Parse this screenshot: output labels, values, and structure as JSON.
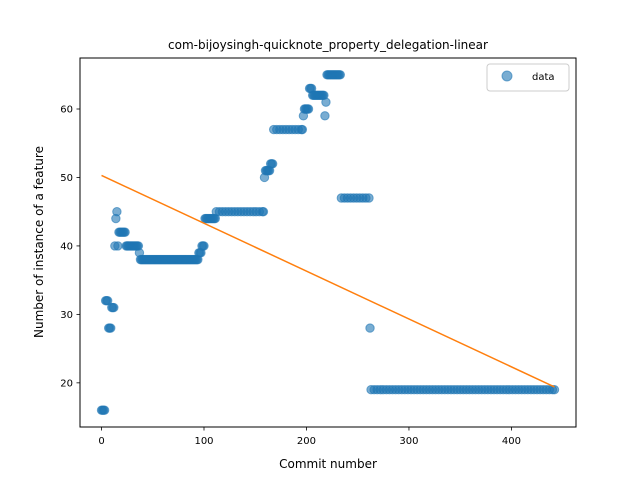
{
  "chart_data": {
    "type": "scatter",
    "title": "com-bijoysingh-quicknote_property_delegation-linear",
    "xlabel": "Commit number",
    "ylabel": "Number of instance of a feature",
    "xlim": [
      -21,
      463
    ],
    "ylim": [
      13.55,
      67.45
    ],
    "xticks": [
      0,
      100,
      200,
      300,
      400
    ],
    "yticks": [
      20,
      30,
      40,
      50,
      60
    ],
    "grid": false,
    "legend_position": "top-right",
    "colors": {
      "data": "#1f77b4",
      "fit": "#ff7f0e"
    },
    "series": [
      {
        "name": "data",
        "kind": "scatter",
        "points": [
          [
            0,
            16
          ],
          [
            1,
            16
          ],
          [
            2,
            16
          ],
          [
            3,
            16
          ],
          [
            4,
            32
          ],
          [
            5,
            32
          ],
          [
            6,
            32
          ],
          [
            7,
            28
          ],
          [
            8,
            28
          ],
          [
            9,
            28
          ],
          [
            10,
            31
          ],
          [
            11,
            31
          ],
          [
            12,
            31
          ],
          [
            13,
            40
          ],
          [
            14,
            44
          ],
          [
            15,
            45
          ],
          [
            16,
            40
          ],
          [
            17,
            42
          ],
          [
            18,
            42
          ],
          [
            19,
            42
          ],
          [
            20,
            42
          ],
          [
            21,
            42
          ],
          [
            22,
            42
          ],
          [
            23,
            42
          ],
          [
            24,
            40
          ],
          [
            25,
            40
          ],
          [
            26,
            40
          ],
          [
            27,
            40
          ],
          [
            28,
            40
          ],
          [
            29,
            40
          ],
          [
            30,
            40
          ],
          [
            31,
            40
          ],
          [
            32,
            40
          ],
          [
            33,
            40
          ],
          [
            34,
            40
          ],
          [
            35,
            40
          ],
          [
            36,
            40
          ],
          [
            37,
            39
          ],
          [
            38,
            38
          ],
          [
            39,
            38
          ],
          [
            40,
            38
          ],
          [
            41,
            38
          ],
          [
            42,
            38
          ],
          [
            43,
            38
          ],
          [
            44,
            38
          ],
          [
            45,
            38
          ],
          [
            46,
            38
          ],
          [
            47,
            38
          ],
          [
            48,
            38
          ],
          [
            49,
            38
          ],
          [
            50,
            38
          ],
          [
            51,
            38
          ],
          [
            52,
            38
          ],
          [
            53,
            38
          ],
          [
            54,
            38
          ],
          [
            55,
            38
          ],
          [
            56,
            38
          ],
          [
            57,
            38
          ],
          [
            58,
            38
          ],
          [
            59,
            38
          ],
          [
            60,
            38
          ],
          [
            61,
            38
          ],
          [
            62,
            38
          ],
          [
            63,
            38
          ],
          [
            64,
            38
          ],
          [
            65,
            38
          ],
          [
            66,
            38
          ],
          [
            67,
            38
          ],
          [
            68,
            38
          ],
          [
            69,
            38
          ],
          [
            70,
            38
          ],
          [
            71,
            38
          ],
          [
            72,
            38
          ],
          [
            73,
            38
          ],
          [
            74,
            38
          ],
          [
            75,
            38
          ],
          [
            76,
            38
          ],
          [
            77,
            38
          ],
          [
            78,
            38
          ],
          [
            79,
            38
          ],
          [
            80,
            38
          ],
          [
            81,
            38
          ],
          [
            82,
            38
          ],
          [
            83,
            38
          ],
          [
            84,
            38
          ],
          [
            85,
            38
          ],
          [
            86,
            38
          ],
          [
            87,
            38
          ],
          [
            88,
            38
          ],
          [
            89,
            38
          ],
          [
            90,
            38
          ],
          [
            91,
            38
          ],
          [
            92,
            38
          ],
          [
            93,
            38
          ],
          [
            94,
            38
          ],
          [
            95,
            39
          ],
          [
            96,
            39
          ],
          [
            97,
            39
          ],
          [
            98,
            40
          ],
          [
            99,
            40
          ],
          [
            100,
            40
          ],
          [
            101,
            44
          ],
          [
            102,
            44
          ],
          [
            103,
            44
          ],
          [
            104,
            44
          ],
          [
            105,
            44
          ],
          [
            106,
            44
          ],
          [
            107,
            44
          ],
          [
            108,
            44
          ],
          [
            109,
            44
          ],
          [
            110,
            44
          ],
          [
            111,
            44
          ],
          [
            112,
            45
          ],
          [
            115,
            45
          ],
          [
            118,
            45
          ],
          [
            121,
            45
          ],
          [
            124,
            45
          ],
          [
            127,
            45
          ],
          [
            130,
            45
          ],
          [
            133,
            45
          ],
          [
            136,
            45
          ],
          [
            139,
            45
          ],
          [
            142,
            45
          ],
          [
            145,
            45
          ],
          [
            148,
            45
          ],
          [
            151,
            45
          ],
          [
            154,
            45
          ],
          [
            157,
            45
          ],
          [
            158,
            45
          ],
          [
            159,
            50
          ],
          [
            160,
            51
          ],
          [
            161,
            51
          ],
          [
            162,
            51
          ],
          [
            163,
            51
          ],
          [
            164,
            51
          ],
          [
            165,
            52
          ],
          [
            166,
            52
          ],
          [
            167,
            52
          ],
          [
            168,
            57
          ],
          [
            171,
            57
          ],
          [
            174,
            57
          ],
          [
            177,
            57
          ],
          [
            180,
            57
          ],
          [
            183,
            57
          ],
          [
            186,
            57
          ],
          [
            189,
            57
          ],
          [
            192,
            57
          ],
          [
            195,
            57
          ],
          [
            196,
            57
          ],
          [
            197,
            59
          ],
          [
            198,
            60
          ],
          [
            199,
            60
          ],
          [
            200,
            60
          ],
          [
            201,
            60
          ],
          [
            202,
            60
          ],
          [
            203,
            63
          ],
          [
            204,
            63
          ],
          [
            205,
            63
          ],
          [
            206,
            62
          ],
          [
            207,
            62
          ],
          [
            208,
            62
          ],
          [
            209,
            62
          ],
          [
            210,
            62
          ],
          [
            211,
            62
          ],
          [
            212,
            62
          ],
          [
            213,
            62
          ],
          [
            214,
            62
          ],
          [
            215,
            62
          ],
          [
            216,
            62
          ],
          [
            217,
            62
          ],
          [
            218,
            59
          ],
          [
            219,
            61
          ],
          [
            220,
            65
          ],
          [
            221,
            65
          ],
          [
            222,
            65
          ],
          [
            223,
            65
          ],
          [
            224,
            65
          ],
          [
            225,
            65
          ],
          [
            226,
            65
          ],
          [
            227,
            65
          ],
          [
            228,
            65
          ],
          [
            229,
            65
          ],
          [
            230,
            65
          ],
          [
            231,
            65
          ],
          [
            232,
            65
          ],
          [
            233,
            65
          ],
          [
            234,
            47
          ],
          [
            237,
            47
          ],
          [
            240,
            47
          ],
          [
            243,
            47
          ],
          [
            246,
            47
          ],
          [
            249,
            47
          ],
          [
            252,
            47
          ],
          [
            255,
            47
          ],
          [
            258,
            47
          ],
          [
            261,
            47
          ],
          [
            262,
            28
          ],
          [
            263,
            19
          ],
          [
            266,
            19
          ],
          [
            269,
            19
          ],
          [
            272,
            19
          ],
          [
            275,
            19
          ],
          [
            278,
            19
          ],
          [
            281,
            19
          ],
          [
            284,
            19
          ],
          [
            287,
            19
          ],
          [
            290,
            19
          ],
          [
            293,
            19
          ],
          [
            296,
            19
          ],
          [
            299,
            19
          ],
          [
            302,
            19
          ],
          [
            305,
            19
          ],
          [
            308,
            19
          ],
          [
            311,
            19
          ],
          [
            314,
            19
          ],
          [
            317,
            19
          ],
          [
            320,
            19
          ],
          [
            323,
            19
          ],
          [
            326,
            19
          ],
          [
            329,
            19
          ],
          [
            332,
            19
          ],
          [
            335,
            19
          ],
          [
            338,
            19
          ],
          [
            341,
            19
          ],
          [
            344,
            19
          ],
          [
            347,
            19
          ],
          [
            350,
            19
          ],
          [
            353,
            19
          ],
          [
            356,
            19
          ],
          [
            359,
            19
          ],
          [
            362,
            19
          ],
          [
            365,
            19
          ],
          [
            368,
            19
          ],
          [
            371,
            19
          ],
          [
            374,
            19
          ],
          [
            377,
            19
          ],
          [
            380,
            19
          ],
          [
            383,
            19
          ],
          [
            386,
            19
          ],
          [
            389,
            19
          ],
          [
            392,
            19
          ],
          [
            395,
            19
          ],
          [
            398,
            19
          ],
          [
            401,
            19
          ],
          [
            404,
            19
          ],
          [
            407,
            19
          ],
          [
            410,
            19
          ],
          [
            413,
            19
          ],
          [
            416,
            19
          ],
          [
            419,
            19
          ],
          [
            422,
            19
          ],
          [
            425,
            19
          ],
          [
            428,
            19
          ],
          [
            431,
            19
          ],
          [
            434,
            19
          ],
          [
            437,
            19
          ],
          [
            440,
            19
          ],
          [
            442,
            19
          ]
        ]
      },
      {
        "name": "",
        "kind": "line",
        "points": [
          [
            0,
            50.3
          ],
          [
            442,
            19.4
          ]
        ]
      }
    ]
  }
}
